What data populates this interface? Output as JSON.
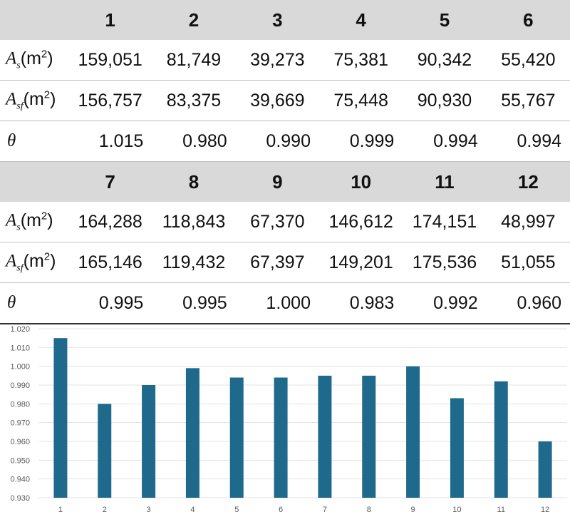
{
  "table": {
    "blocks": [
      {
        "headers": [
          "1",
          "2",
          "3",
          "4",
          "5",
          "6"
        ],
        "rows": [
          {
            "symbol": "A",
            "sub": "s",
            "unit": "m",
            "unit_sup": "2",
            "values": [
              "159,051",
              "81,749",
              "39,273",
              "75,381",
              "90,342",
              "55,420"
            ]
          },
          {
            "symbol": "A",
            "sub": "sf",
            "unit": "m",
            "unit_sup": "2",
            "values": [
              "156,757",
              "83,375",
              "39,669",
              "75,448",
              "90,930",
              "55,767"
            ]
          },
          {
            "symbol": "θ",
            "sub": "",
            "unit": "",
            "unit_sup": "",
            "values": [
              "1.015",
              "0.980",
              "0.990",
              "0.999",
              "0.994",
              "0.994"
            ]
          }
        ]
      },
      {
        "headers": [
          "7",
          "8",
          "9",
          "10",
          "11",
          "12"
        ],
        "rows": [
          {
            "symbol": "A",
            "sub": "s",
            "unit": "m",
            "unit_sup": "2",
            "values": [
              "164,288",
              "118,843",
              "67,370",
              "146,612",
              "174,151",
              "48,997"
            ]
          },
          {
            "symbol": "A",
            "sub": "sf",
            "unit": "m",
            "unit_sup": "2",
            "values": [
              "165,146",
              "119,432",
              "67,397",
              "149,201",
              "175,536",
              "51,055"
            ]
          },
          {
            "symbol": "θ",
            "sub": "",
            "unit": "",
            "unit_sup": "",
            "values": [
              "0.995",
              "0.995",
              "1.000",
              "0.983",
              "0.992",
              "0.960"
            ]
          }
        ]
      }
    ]
  },
  "chart_data": {
    "type": "bar",
    "categories": [
      "1",
      "2",
      "3",
      "4",
      "5",
      "6",
      "7",
      "8",
      "9",
      "10",
      "11",
      "12"
    ],
    "values": [
      1.015,
      0.98,
      0.99,
      0.999,
      0.994,
      0.994,
      0.995,
      0.995,
      1.0,
      0.983,
      0.992,
      0.96
    ],
    "ylim": [
      0.93,
      1.02
    ],
    "yticks": [
      "0.930",
      "0.940",
      "0.950",
      "0.960",
      "0.970",
      "0.980",
      "0.990",
      "1.000",
      "1.010",
      "1.020"
    ],
    "grid": true,
    "legend": "none",
    "bar_color": "#1f6a8c",
    "grid_color": "#e3e3e3",
    "title": "",
    "xlabel": "",
    "ylabel": ""
  }
}
